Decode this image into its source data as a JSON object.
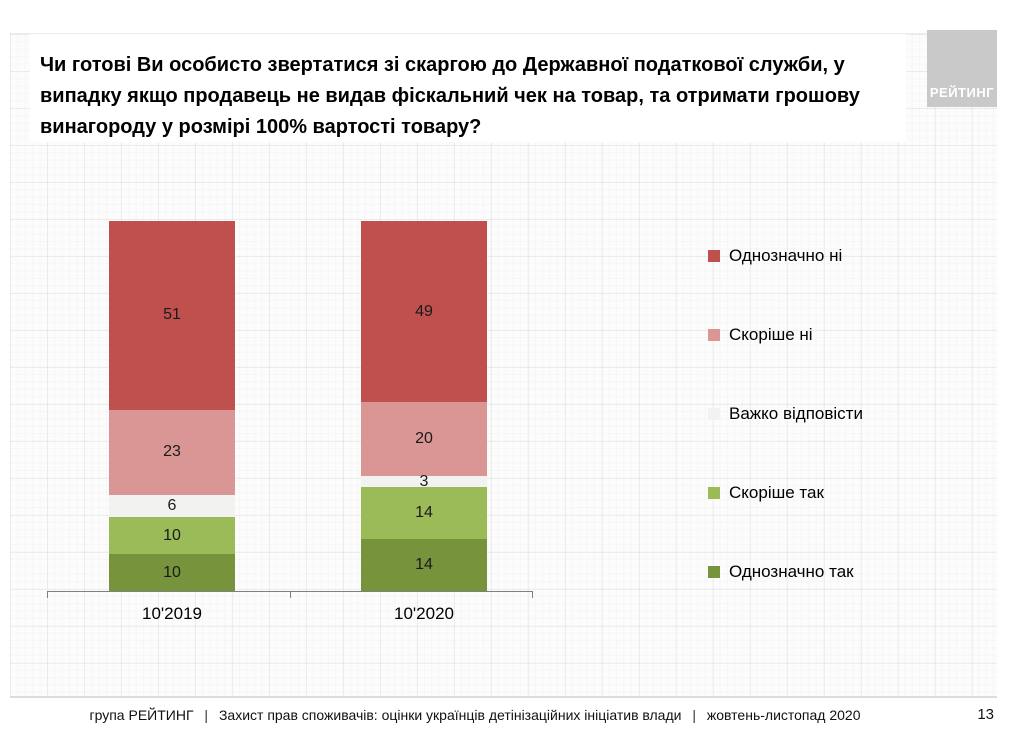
{
  "slide": {
    "title": "Чи готові Ви особисто звертатися зі скаргою до Державної податкової служби, у випадку якщо продавець не видав фіскальний чек на товар, та отримати грошову винагороду у розмірі 100% вартості товару?",
    "logo": {
      "text": "РЕЙТИНГ",
      "bg_color": "#c9c9c9",
      "text_color": "#ffffff"
    },
    "page_number": "13",
    "footer": {
      "org": "група РЕЙТИНГ",
      "separator": "|",
      "report": "Захист прав споживачів: оцінки українців детінізаційних ініціатив влади",
      "period": "жовтень-листопад 2020"
    }
  },
  "chart_data": {
    "type": "bar",
    "subtype": "stacked_column",
    "categories": [
      "10'2019",
      "10'2020"
    ],
    "series": [
      {
        "name": "Однозначно ні",
        "color": "#c0504d",
        "values": [
          51,
          49
        ]
      },
      {
        "name": "Скоріше ні",
        "color": "#d99694",
        "values": [
          23,
          20
        ]
      },
      {
        "name": "Важко відповісти",
        "color": "#f2f2f1",
        "values": [
          6,
          3
        ]
      },
      {
        "name": "Скоріше так",
        "color": "#9bbb59",
        "values": [
          10,
          14
        ]
      },
      {
        "name": "Однозначно так",
        "color": "#77933c",
        "values": [
          10,
          14
        ]
      }
    ],
    "stack_total": 100,
    "ylim": [
      0,
      100
    ],
    "value_labels": "inside",
    "legend_position": "right",
    "grid": false,
    "axis_color": "#7f7f7f"
  }
}
